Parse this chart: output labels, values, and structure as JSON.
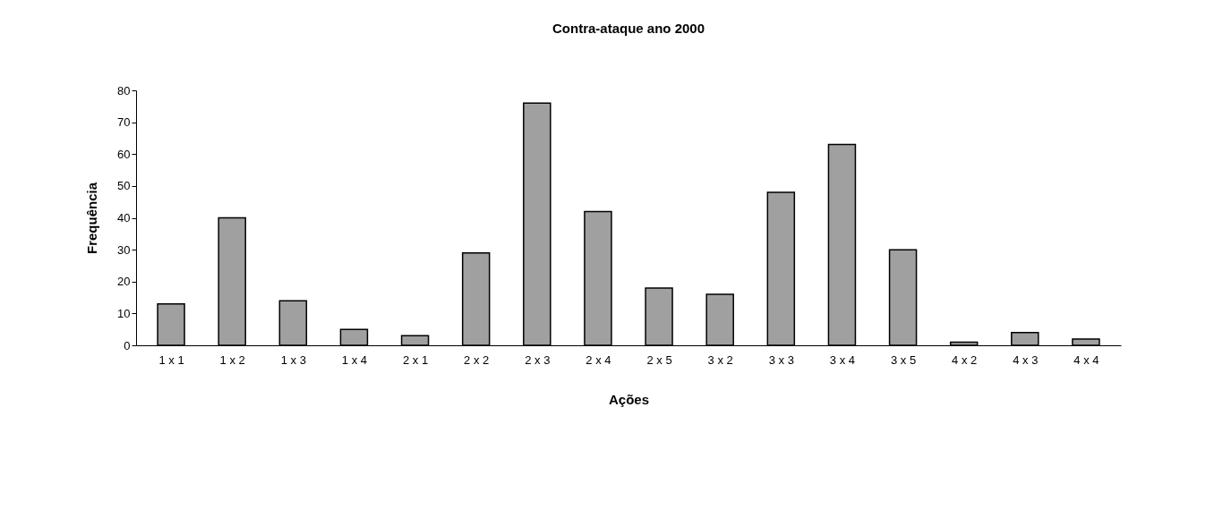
{
  "chart_data": {
    "type": "bar",
    "title": "Contra-ataque ano 2000",
    "xlabel": "Ações",
    "ylabel": "Frequência",
    "categories": [
      "1 x 1",
      "1 x 2",
      "1 x 3",
      "1 x 4",
      "2 x 1",
      "2 x 2",
      "2 x 3",
      "2 x 4",
      "2 x 5",
      "3 x 2",
      "3 x 3",
      "3 x 4",
      "3 x 5",
      "4 x 2",
      "4 x 3",
      "4 x 4"
    ],
    "values": [
      13,
      40,
      14,
      5,
      3,
      29,
      76,
      42,
      18,
      16,
      48,
      63,
      30,
      1,
      4,
      2
    ],
    "color": "#a0a0a0",
    "ylim": [
      0,
      80
    ],
    "yticks": [
      0,
      10,
      20,
      30,
      40,
      50,
      60,
      70,
      80
    ],
    "grid": false
  }
}
